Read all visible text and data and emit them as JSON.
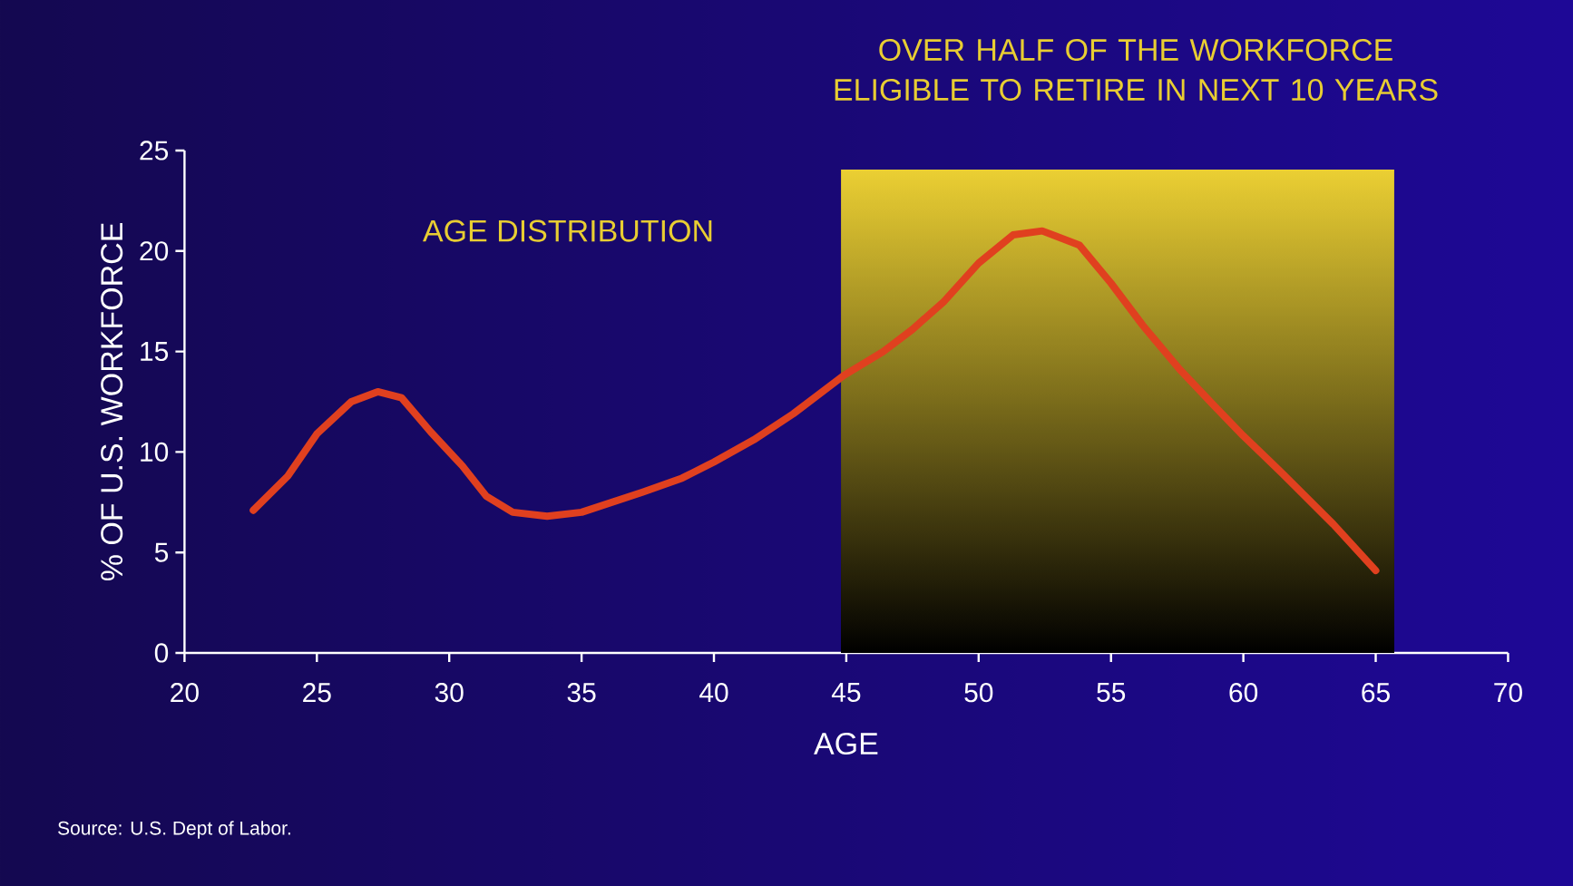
{
  "chart_data": {
    "type": "line",
    "title": "OVER HALF OF THE WORKFORCE ELIGIBLE TO RETIRE IN NEXT 10 YEARS",
    "xlabel": "AGE",
    "ylabel": "% OF U.S. WORKFORCE",
    "annotations": [
      "AGE DISTRIBUTION",
      "Source: U.S. Dept of Labor."
    ],
    "x": [
      22.6,
      23.9,
      25.0,
      26.3,
      27.3,
      28.2,
      29.3,
      30.5,
      31.4,
      32.4,
      33.7,
      35.0,
      37.3,
      38.8,
      40.0,
      41.5,
      43.0,
      44.9,
      46.4,
      47.5,
      48.7,
      50.0,
      51.3,
      52.4,
      53.8,
      55.0,
      56.2,
      57.6,
      58.9,
      60.0,
      61.5,
      63.4,
      65.0
    ],
    "values": [
      7.1,
      8.8,
      10.9,
      12.5,
      13.0,
      12.7,
      11.0,
      9.3,
      7.8,
      7.0,
      6.8,
      7.0,
      8.0,
      8.7,
      9.5,
      10.6,
      11.9,
      13.8,
      15.0,
      16.1,
      17.5,
      19.4,
      20.8,
      21.0,
      20.3,
      18.4,
      16.3,
      14.1,
      12.3,
      10.8,
      8.9,
      6.4,
      4.1
    ],
    "color": "#e0401f",
    "bands": [
      {
        "axis": "x",
        "from": 44.8,
        "to": 65.7,
        "color": "#ebcf33"
      }
    ],
    "xlim": [
      20,
      70
    ],
    "xticks": [
      20,
      25,
      30,
      35,
      40,
      45,
      50,
      55,
      60,
      65,
      70
    ],
    "ylim": [
      0,
      25
    ],
    "yticks": [
      0,
      5,
      10,
      15,
      20,
      25
    ],
    "grid": false,
    "marker": "none",
    "line_style": "solid"
  }
}
